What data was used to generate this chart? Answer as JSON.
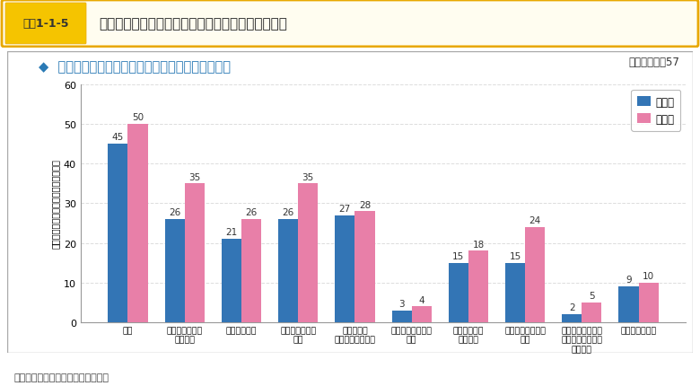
{
  "title_box_text": "図表1-1-5",
  "title_main": "住民協議会における事前事後アンケートの調査結果",
  "subtitle": "◆  防災に関して自身で行っている備えはありますか",
  "note": "有効回答数：57",
  "source": "出典：内閣府によるアンケート結果",
  "ylabel_lines": [
    "回",
    "答",
    "し",
    "た",
    "住",
    "民",
    "数",
    "（",
    "複",
    "数",
    "回",
    "答",
    "可",
    "）",
    "（",
    "人",
    "）"
  ],
  "ylim": [
    0,
    60
  ],
  "yticks": [
    0,
    10,
    20,
    30,
    40,
    50,
    60
  ],
  "categories": [
    "備蓄",
    "非常用持ち出し\n袋の準備",
    "保険への加入",
    "安否連絡方法の\n確認",
    "家具の固定\nガラスの飛散防止",
    "感震ブレーカーの\n設置",
    "自宅の耐震化\n浸水対策",
    "ハザードマップの\n確認",
    "浸水に備えた家具\nの置き換え、貴重\n品の移動",
    "セミナーの傍聴"
  ],
  "series1_label": "第１回",
  "series2_label": "第５回",
  "series1_values": [
    45,
    26,
    21,
    26,
    27,
    3,
    15,
    15,
    2,
    9
  ],
  "series2_values": [
    50,
    35,
    26,
    35,
    28,
    4,
    18,
    24,
    5,
    10
  ],
  "color1": "#3375b5",
  "color2": "#e87fa8",
  "header_bg": "#f5c400",
  "header_border": "#e8a800",
  "header_outer_bg": "#fdf5e0",
  "grid_color": "#dddddd",
  "bar_label_color": "#333333"
}
